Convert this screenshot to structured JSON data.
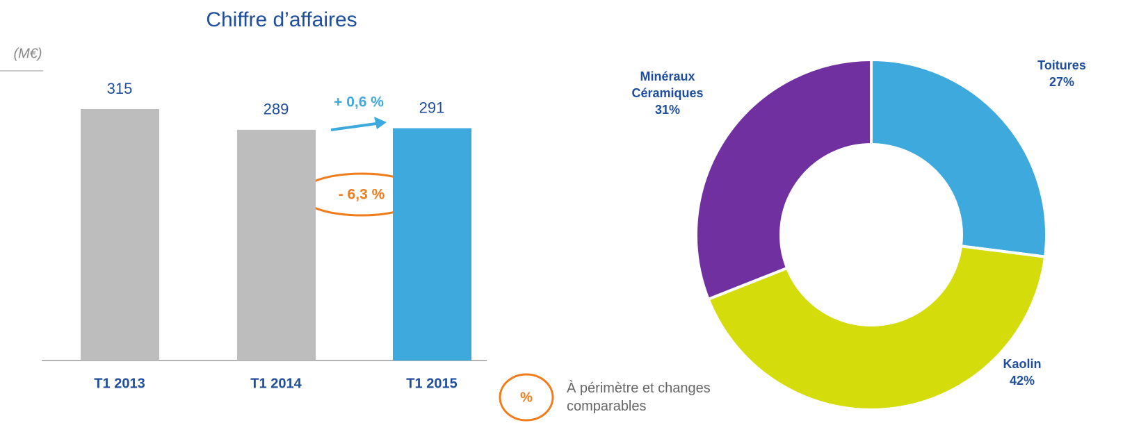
{
  "chart_data": [
    {
      "type": "bar",
      "title": "Chiffre d’affaires",
      "unit_label": "(M€)",
      "categories": [
        "T1 2013",
        "T1 2014",
        "T1 2015"
      ],
      "values": [
        315,
        289,
        291
      ],
      "colors": [
        "#bdbdbd",
        "#bdbdbd",
        "#3ea9dc"
      ],
      "annotations": [
        "+ 0,6 %",
        "- 6,3 %"
      ]
    },
    {
      "type": "pie",
      "categories": [
        "Toitures",
        "Kaolin",
        "Minéraux Céramiques"
      ],
      "values": [
        27,
        42,
        31
      ],
      "value_labels": [
        "27%",
        "42%",
        "31%"
      ],
      "colors": [
        "#3ea9dc",
        "#d4dc0c",
        "#7030a0"
      ]
    }
  ],
  "note": {
    "symbol": "%",
    "text": "À périmètre et changes comparables"
  }
}
